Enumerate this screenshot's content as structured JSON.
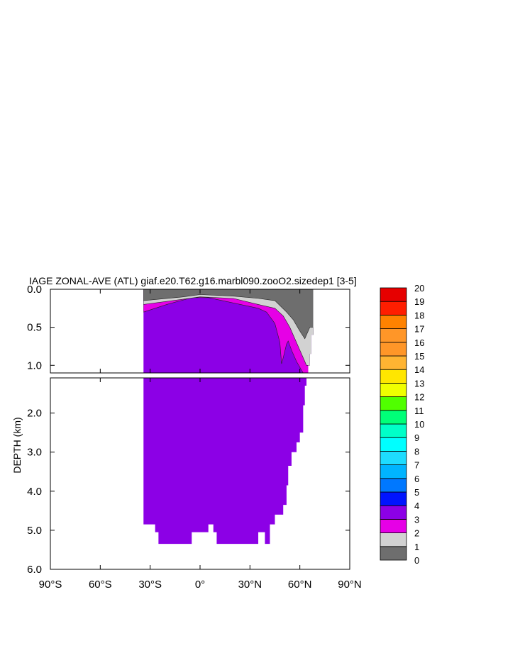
{
  "chart_data": {
    "type": "heatmap",
    "title": "IAGE ZONAL-AVE (ATL) giaf.e20.T62.g16.marbl090.zooO2.sizedep1 [3-5]",
    "ylabel": "DEPTH (km)",
    "xlabel": "",
    "x_ticks": [
      {
        "value": -90,
        "label": "90°S"
      },
      {
        "value": -60,
        "label": "60°S"
      },
      {
        "value": -30,
        "label": "30°S"
      },
      {
        "value": 0,
        "label": "0°"
      },
      {
        "value": 30,
        "label": "30°N"
      },
      {
        "value": 60,
        "label": "60°N"
      },
      {
        "value": 90,
        "label": "90°N"
      }
    ],
    "upper_panel": {
      "ylim": [
        0.0,
        1.1
      ],
      "y_ticks": [
        {
          "value": 0.0,
          "label": "0.0"
        },
        {
          "value": 0.5,
          "label": "0.5"
        },
        {
          "value": 1.0,
          "label": "1.0"
        }
      ]
    },
    "lower_panel": {
      "ylim": [
        1.1,
        6.0
      ],
      "y_ticks": [
        {
          "value": 2.0,
          "label": "2.0"
        },
        {
          "value": 3.0,
          "label": "3.0"
        },
        {
          "value": 4.0,
          "label": "4.0"
        },
        {
          "value": 5.0,
          "label": "5.0"
        },
        {
          "value": 6.0,
          "label": "6.0"
        }
      ]
    },
    "xlim": [
      -90,
      90
    ],
    "ocean_domain": {
      "south_lat": -34,
      "bottom_depth_profile": [
        {
          "lat": -34,
          "depth": 4.85
        },
        {
          "lat": -27,
          "depth": 5.05
        },
        {
          "lat": -25,
          "depth": 5.35
        },
        {
          "lat": -5,
          "depth": 5.05
        },
        {
          "lat": 5,
          "depth": 4.85
        },
        {
          "lat": 8,
          "depth": 5.05
        },
        {
          "lat": 10,
          "depth": 5.35
        },
        {
          "lat": 35,
          "depth": 5.05
        },
        {
          "lat": 39,
          "depth": 5.35
        },
        {
          "lat": 42,
          "depth": 4.85
        },
        {
          "lat": 45,
          "depth": 4.6
        },
        {
          "lat": 50,
          "depth": 4.35
        },
        {
          "lat": 52,
          "depth": 3.85
        },
        {
          "lat": 53,
          "depth": 3.35
        },
        {
          "lat": 55,
          "depth": 3.0
        },
        {
          "lat": 58,
          "depth": 2.75
        },
        {
          "lat": 60,
          "depth": 2.5
        },
        {
          "lat": 62,
          "depth": 1.8
        },
        {
          "lat": 63,
          "depth": 1.3
        },
        {
          "lat": 64,
          "depth": 1.1
        },
        {
          "lat": 65,
          "depth": 1.0
        },
        {
          "lat": 66,
          "depth": 0.85
        },
        {
          "lat": 67,
          "depth": 0.6
        },
        {
          "lat": 68,
          "depth": 0.25
        },
        {
          "lat": 68,
          "depth": 0.0
        }
      ],
      "dominant_value_range": "3-4"
    },
    "contour_bands": [
      {
        "range": "0-1",
        "top_depth": 0.0,
        "bottom_depth_profile": [
          {
            "lat": -34,
            "depth": 0.15
          },
          {
            "lat": -10,
            "depth": 0.1
          },
          {
            "lat": 0,
            "depth": 0.07
          },
          {
            "lat": 20,
            "depth": 0.09
          },
          {
            "lat": 35,
            "depth": 0.12
          },
          {
            "lat": 45,
            "depth": 0.15
          },
          {
            "lat": 52,
            "depth": 0.3
          },
          {
            "lat": 56,
            "depth": 0.4
          },
          {
            "lat": 60,
            "depth": 0.55
          },
          {
            "lat": 63,
            "depth": 0.65
          },
          {
            "lat": 66,
            "depth": 0.5
          }
        ]
      },
      {
        "range": "1-2",
        "bottom_depth_profile": [
          {
            "lat": -34,
            "depth": 0.2
          },
          {
            "lat": -10,
            "depth": 0.13
          },
          {
            "lat": 0,
            "depth": 0.1
          },
          {
            "lat": 20,
            "depth": 0.12
          },
          {
            "lat": 35,
            "depth": 0.2
          },
          {
            "lat": 45,
            "depth": 0.25
          },
          {
            "lat": 50,
            "depth": 0.35
          },
          {
            "lat": 54,
            "depth": 0.5
          },
          {
            "lat": 58,
            "depth": 0.7
          },
          {
            "lat": 62,
            "depth": 0.9
          },
          {
            "lat": 64,
            "depth": 1.0
          }
        ]
      },
      {
        "range": "2-3",
        "bottom_depth_profile": [
          {
            "lat": -34,
            "depth": 0.3
          },
          {
            "lat": -20,
            "depth": 0.2
          },
          {
            "lat": -5,
            "depth": 0.11
          },
          {
            "lat": 5,
            "depth": 0.11
          },
          {
            "lat": 20,
            "depth": 0.18
          },
          {
            "lat": 35,
            "depth": 0.25
          },
          {
            "lat": 40,
            "depth": 0.3
          },
          {
            "lat": 45,
            "depth": 0.45
          },
          {
            "lat": 48,
            "depth": 0.7
          },
          {
            "lat": 49,
            "depth": 0.98
          },
          {
            "lat": 50,
            "depth": 0.9
          },
          {
            "lat": 52,
            "depth": 0.72
          },
          {
            "lat": 53,
            "depth": 0.68
          },
          {
            "lat": 55,
            "depth": 0.8
          },
          {
            "lat": 58,
            "depth": 0.95
          },
          {
            "lat": 62,
            "depth": 1.1
          }
        ]
      }
    ],
    "colorbar": {
      "levels": [
        "0",
        "1",
        "2",
        "3",
        "4",
        "5",
        "6",
        "7",
        "8",
        "9",
        "10",
        "11",
        "12",
        "13",
        "14",
        "15",
        "16",
        "17",
        "18",
        "19",
        "20"
      ],
      "colors": [
        "#6e6e6e",
        "#d2d2d2",
        "#e600e6",
        "#8c00e6",
        "#0014ff",
        "#0078ff",
        "#00b4ff",
        "#1edcff",
        "#00ffff",
        "#00ffc8",
        "#00ff78",
        "#50ff00",
        "#f0ff00",
        "#ffe600",
        "#ffb432",
        "#ff9628",
        "#ff9628",
        "#ff8200",
        "#ff1e00",
        "#e60000",
        "#c80000"
      ]
    }
  }
}
